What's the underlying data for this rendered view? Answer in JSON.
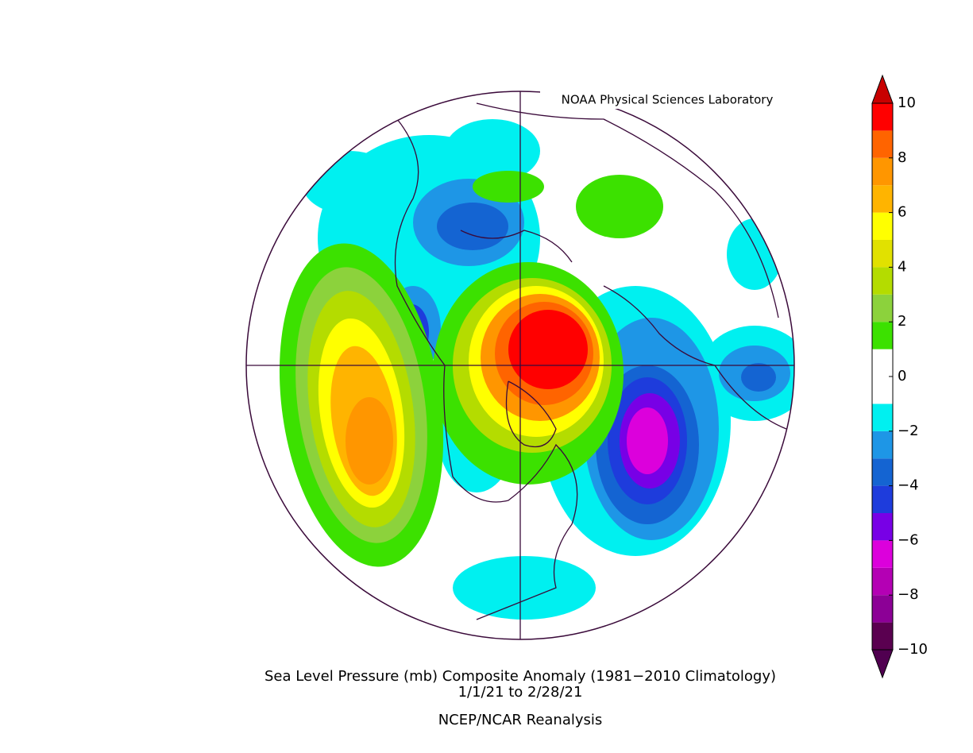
{
  "header": {
    "credit": "NOAA Physical Sciences Laboratory"
  },
  "caption": {
    "title": "Sea Level Pressure (mb) Composite Anomaly (1981−2010 Climatology)",
    "period": "1/1/21  to 2/28/21",
    "source": "NCEP/NCAR Reanalysis"
  },
  "colorbar": {
    "lim": [
      -10,
      10
    ],
    "levels": [
      -10,
      -9,
      -8,
      -7,
      -6,
      -5,
      -4,
      -3,
      -2,
      -1,
      0,
      1,
      2,
      3,
      4,
      5,
      6,
      7,
      8,
      9,
      10
    ],
    "colors": [
      "#5a0050",
      "#8c0096",
      "#b400b4",
      "#dc00dc",
      "#7800e6",
      "#1e3cdc",
      "#1464d2",
      "#1e96e6",
      "#00f0f0",
      "#ffffff",
      "#ffffff",
      "#3ce100",
      "#8cd23c",
      "#b4dc00",
      "#e1e100",
      "#ffff00",
      "#ffb400",
      "#ff9600",
      "#ff6400",
      "#ff0000"
    ],
    "under_color": "#500050",
    "over_color": "#c80000",
    "ticks": [
      10,
      8,
      6,
      4,
      2,
      0,
      {
        "value": -2,
        "label": "−2"
      },
      {
        "value": -4,
        "label": "−4"
      },
      {
        "value": -6,
        "label": "−6"
      },
      {
        "value": -8,
        "label": "−8"
      },
      {
        "value": -10,
        "label": "−10"
      }
    ]
  }
}
